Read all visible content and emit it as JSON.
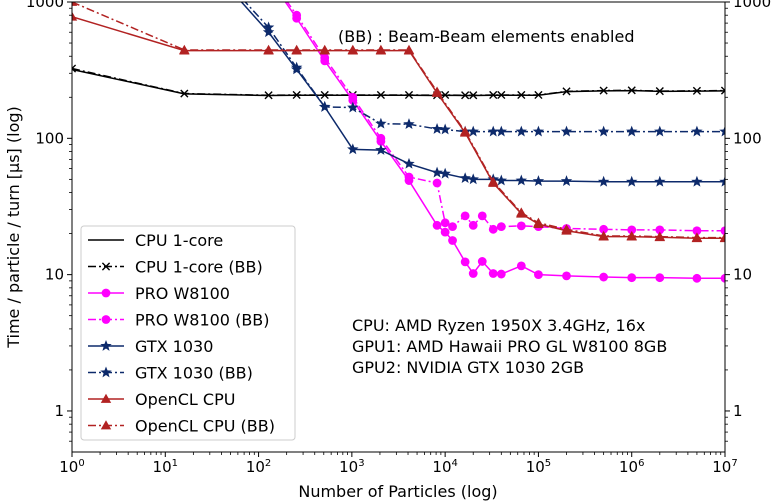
{
  "chart_data": {
    "type": "line",
    "xlabel": "Number of Particles (log)",
    "ylabel": "Time / particle / turn [µs] (log)",
    "xscale": "log",
    "yscale": "log",
    "xlim": [
      1,
      10000000
    ],
    "ylim": [
      0.5,
      1000
    ],
    "x_ticks": [
      {
        "value": 1,
        "base": "10",
        "exp": "0"
      },
      {
        "value": 10,
        "base": "10",
        "exp": "1"
      },
      {
        "value": 100,
        "base": "10",
        "exp": "2"
      },
      {
        "value": 1000,
        "base": "10",
        "exp": "3"
      },
      {
        "value": 10000,
        "base": "10",
        "exp": "4"
      },
      {
        "value": 100000,
        "base": "10",
        "exp": "5"
      },
      {
        "value": 1000000,
        "base": "10",
        "exp": "6"
      },
      {
        "value": 10000000,
        "base": "10",
        "exp": "7"
      }
    ],
    "y_ticks": [
      {
        "value": 1,
        "label": "1"
      },
      {
        "value": 10,
        "label": "10"
      },
      {
        "value": 100,
        "label": "100"
      },
      {
        "value": 1000,
        "label": "1000"
      }
    ],
    "right_axis_ticks": true,
    "grid": false,
    "legend_position": "lower-left",
    "annotations": [
      {
        "text": "(BB) : Beam-Beam elements enabled",
        "position": "top-center"
      },
      {
        "text": "CPU:   AMD Ryzen 1950X 3.4GHz, 16x",
        "position": "lower-right"
      },
      {
        "text": "GPU1: AMD Hawaii PRO GL W8100 8GB",
        "position": "lower-right"
      },
      {
        "text": "GPU2: NVIDIA GTX 1030 2GB",
        "position": "lower-right"
      }
    ],
    "series": [
      {
        "name": "CPU 1-core",
        "color": "#000000",
        "style": "solid",
        "marker": "none",
        "x": [
          1,
          16,
          128,
          256,
          512,
          1024,
          2048,
          4096,
          8192,
          10000,
          16384,
          20000,
          32768,
          40000,
          65536,
          100000,
          200000,
          500000,
          1000000,
          2000000,
          5000000,
          10000000
        ],
        "y": [
          320,
          212,
          206,
          207,
          207,
          207,
          207,
          207,
          206,
          207,
          206,
          206,
          207,
          207,
          207,
          207,
          220,
          223,
          224,
          221,
          222,
          223
        ]
      },
      {
        "name": "CPU 1-core (BB)",
        "color": "#000000",
        "style": "dashdot",
        "marker": "x",
        "x": [
          1,
          16,
          128,
          256,
          512,
          1024,
          2048,
          4096,
          8192,
          10000,
          16384,
          20000,
          32768,
          40000,
          65536,
          100000,
          200000,
          500000,
          1000000,
          2000000,
          5000000,
          10000000
        ],
        "y": [
          325,
          213,
          207,
          208,
          208,
          208,
          208,
          208,
          207,
          208,
          207,
          207,
          208,
          208,
          208,
          208,
          221,
          224,
          225,
          222,
          223,
          224
        ]
      },
      {
        "name": "PRO W8100",
        "color": "#ff00ff",
        "style": "solid",
        "marker": "circle",
        "x": [
          64,
          256,
          512,
          1024,
          2048,
          4096,
          8192,
          10000,
          12000,
          16384,
          20000,
          25000,
          32768,
          40000,
          65536,
          100000,
          200000,
          500000,
          1000000,
          2000000,
          5000000,
          10000000
        ],
        "y": [
          3000,
          760,
          370,
          190,
          95,
          49,
          23,
          20.5,
          17.8,
          12.4,
          10.2,
          12.5,
          10.2,
          10.1,
          11.6,
          10.0,
          9.8,
          9.6,
          9.5,
          9.5,
          9.4,
          9.4
        ]
      },
      {
        "name": "PRO W8100 (BB)",
        "color": "#ff00ff",
        "style": "dashdot",
        "marker": "circle",
        "x": [
          64,
          256,
          512,
          1024,
          2048,
          4096,
          8192,
          10000,
          12000,
          16384,
          20000,
          25000,
          32768,
          40000,
          65536,
          100000,
          200000,
          500000,
          1000000,
          2000000,
          5000000,
          10000000
        ],
        "y": [
          3100,
          800,
          390,
          200,
          100,
          52,
          47,
          24,
          22.5,
          27,
          23,
          27,
          21.5,
          22.5,
          22.8,
          22.5,
          21.8,
          21.5,
          21.3,
          21.3,
          21.0,
          21.0
        ]
      },
      {
        "name": "GTX 1030",
        "color": "#0d2a6b",
        "style": "solid",
        "marker": "star",
        "x": [
          8,
          128,
          256,
          512,
          1024,
          2048,
          4096,
          8192,
          10000,
          16384,
          20000,
          32768,
          40000,
          65536,
          100000,
          200000,
          500000,
          1000000,
          2000000,
          5000000,
          10000000
        ],
        "y": [
          5000,
          600,
          320,
          170,
          83,
          82,
          65,
          56,
          55,
          51,
          50,
          50,
          49,
          49,
          48.5,
          48.5,
          48,
          48,
          48,
          48,
          48
        ]
      },
      {
        "name": "GTX 1030 (BB)",
        "color": "#0d2a6b",
        "style": "dashdot",
        "marker": "star",
        "x": [
          8,
          128,
          256,
          512,
          1024,
          2048,
          4096,
          8192,
          10000,
          16384,
          20000,
          32768,
          40000,
          65536,
          100000,
          200000,
          500000,
          1000000,
          2000000,
          5000000,
          10000000
        ],
        "y": [
          5200,
          650,
          330,
          170,
          168,
          128,
          127,
          117,
          116,
          112,
          112,
          112,
          112,
          112,
          112,
          112,
          112,
          112,
          112,
          112,
          112
        ]
      },
      {
        "name": "OpenCL CPU",
        "color": "#b22222",
        "style": "solid",
        "marker": "triangle",
        "x": [
          1,
          16,
          128,
          256,
          512,
          1024,
          2048,
          4096,
          8192,
          16384,
          32768,
          65536,
          100000,
          200000,
          500000,
          1000000,
          2000000,
          5000000,
          10000000
        ],
        "y": [
          780,
          440,
          440,
          440,
          440,
          440,
          440,
          440,
          215,
          110,
          47,
          28,
          23.5,
          21,
          19,
          19,
          18.8,
          18.5,
          18.5
        ]
      },
      {
        "name": "OpenCL CPU (BB)",
        "color": "#b22222",
        "style": "dashdot",
        "marker": "triangle",
        "x": [
          1,
          16,
          128,
          256,
          512,
          1024,
          2048,
          4096,
          8192,
          16384,
          32768,
          65536,
          100000,
          200000,
          500000,
          1000000,
          2000000,
          5000000,
          10000000
        ],
        "y": [
          1000,
          445,
          445,
          445,
          445,
          445,
          445,
          445,
          220,
          112,
          48,
          28.5,
          24,
          21.5,
          19.2,
          19.2,
          19,
          18.7,
          18.7
        ]
      }
    ]
  }
}
